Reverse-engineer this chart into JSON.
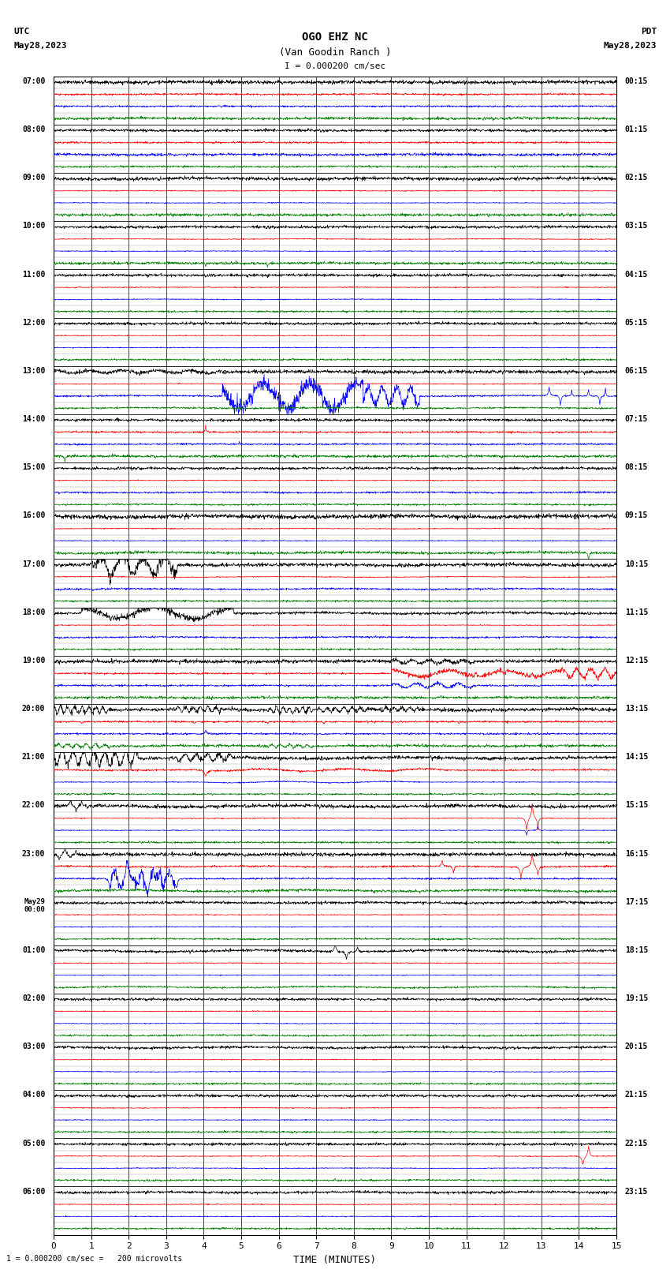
{
  "title_line1": "OGO EHZ NC",
  "title_line2": "(Van Goodin Ranch )",
  "title_line3": "I = 0.000200 cm/sec",
  "left_label_top": "UTC",
  "left_label_date": "May28,2023",
  "right_label_top": "PDT",
  "right_label_date": "May28,2023",
  "bottom_label": "TIME (MINUTES)",
  "bottom_note": "1 = 0.000200 cm/sec =   200 microvolts",
  "utc_times": [
    "07:00",
    "08:00",
    "09:00",
    "10:00",
    "11:00",
    "12:00",
    "13:00",
    "14:00",
    "15:00",
    "16:00",
    "17:00",
    "18:00",
    "19:00",
    "20:00",
    "21:00",
    "22:00",
    "23:00",
    "May29\n00:00",
    "01:00",
    "02:00",
    "03:00",
    "04:00",
    "05:00",
    "06:00"
  ],
  "pdt_times": [
    "00:15",
    "01:15",
    "02:15",
    "03:15",
    "04:15",
    "05:15",
    "06:15",
    "07:15",
    "08:15",
    "09:15",
    "10:15",
    "11:15",
    "12:15",
    "13:15",
    "14:15",
    "15:15",
    "16:15",
    "17:15",
    "18:15",
    "19:15",
    "20:15",
    "21:15",
    "22:15",
    "23:15"
  ],
  "n_rows": 24,
  "n_minutes": 15,
  "bg_color": "#ffffff",
  "figsize": [
    8.5,
    16.13
  ],
  "dpi": 100
}
